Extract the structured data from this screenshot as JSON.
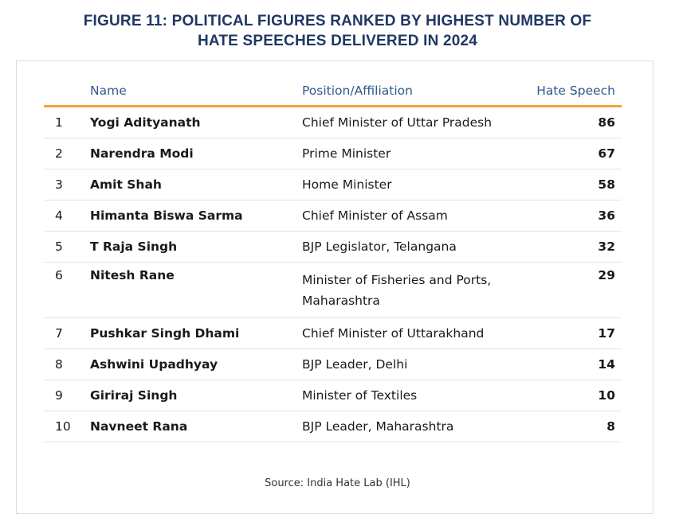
{
  "figure": {
    "title_line1": "FIGURE 11: POLITICAL FIGURES RANKED BY HIGHEST NUMBER OF",
    "title_line2": "HATE SPEECHES DELIVERED IN 2024",
    "source": "Source: India Hate Lab (IHL)"
  },
  "table": {
    "headers": {
      "rank": "",
      "name": "Name",
      "position": "Position/Affiliation",
      "score": "Hate Speech"
    },
    "rows": [
      {
        "rank": "1",
        "name": "Yogi Adityanath",
        "position": "Chief Minister of Uttar Pradesh",
        "position_line2": "",
        "score": "86"
      },
      {
        "rank": "2",
        "name": "Narendra Modi",
        "position": "Prime Minister",
        "position_line2": "",
        "score": "67"
      },
      {
        "rank": "3",
        "name": "Amit Shah",
        "position": "Home Minister",
        "position_line2": "",
        "score": "58"
      },
      {
        "rank": "4",
        "name": "Himanta Biswa Sarma",
        "position": "Chief Minister of Assam",
        "position_line2": "",
        "score": "36"
      },
      {
        "rank": "5",
        "name": "T Raja Singh",
        "position": "BJP Legislator, Telangana",
        "position_line2": "",
        "score": "32"
      },
      {
        "rank": "6",
        "name": "Nitesh Rane",
        "position": "Minister of Fisheries and Ports,",
        "position_line2": "Maharashtra",
        "score": "29"
      },
      {
        "rank": "7",
        "name": "Pushkar Singh Dhami",
        "position": "Chief Minister of Uttarakhand",
        "position_line2": "",
        "score": "17"
      },
      {
        "rank": "8",
        "name": "Ashwini Upadhyay",
        "position": "BJP Leader, Delhi",
        "position_line2": "",
        "score": "14"
      },
      {
        "rank": "9",
        "name": "Giriraj Singh",
        "position": "Minister of Textiles",
        "position_line2": "",
        "score": "10"
      },
      {
        "rank": "10",
        "name": "Navneet Rana",
        "position": "BJP Leader, Maharashtra",
        "position_line2": "",
        "score": "8"
      }
    ]
  },
  "colors": {
    "title": "#1f3864",
    "header_text": "#2e5a8c",
    "header_rule": "#f5a23a",
    "row_rule": "#e3e3e3"
  }
}
